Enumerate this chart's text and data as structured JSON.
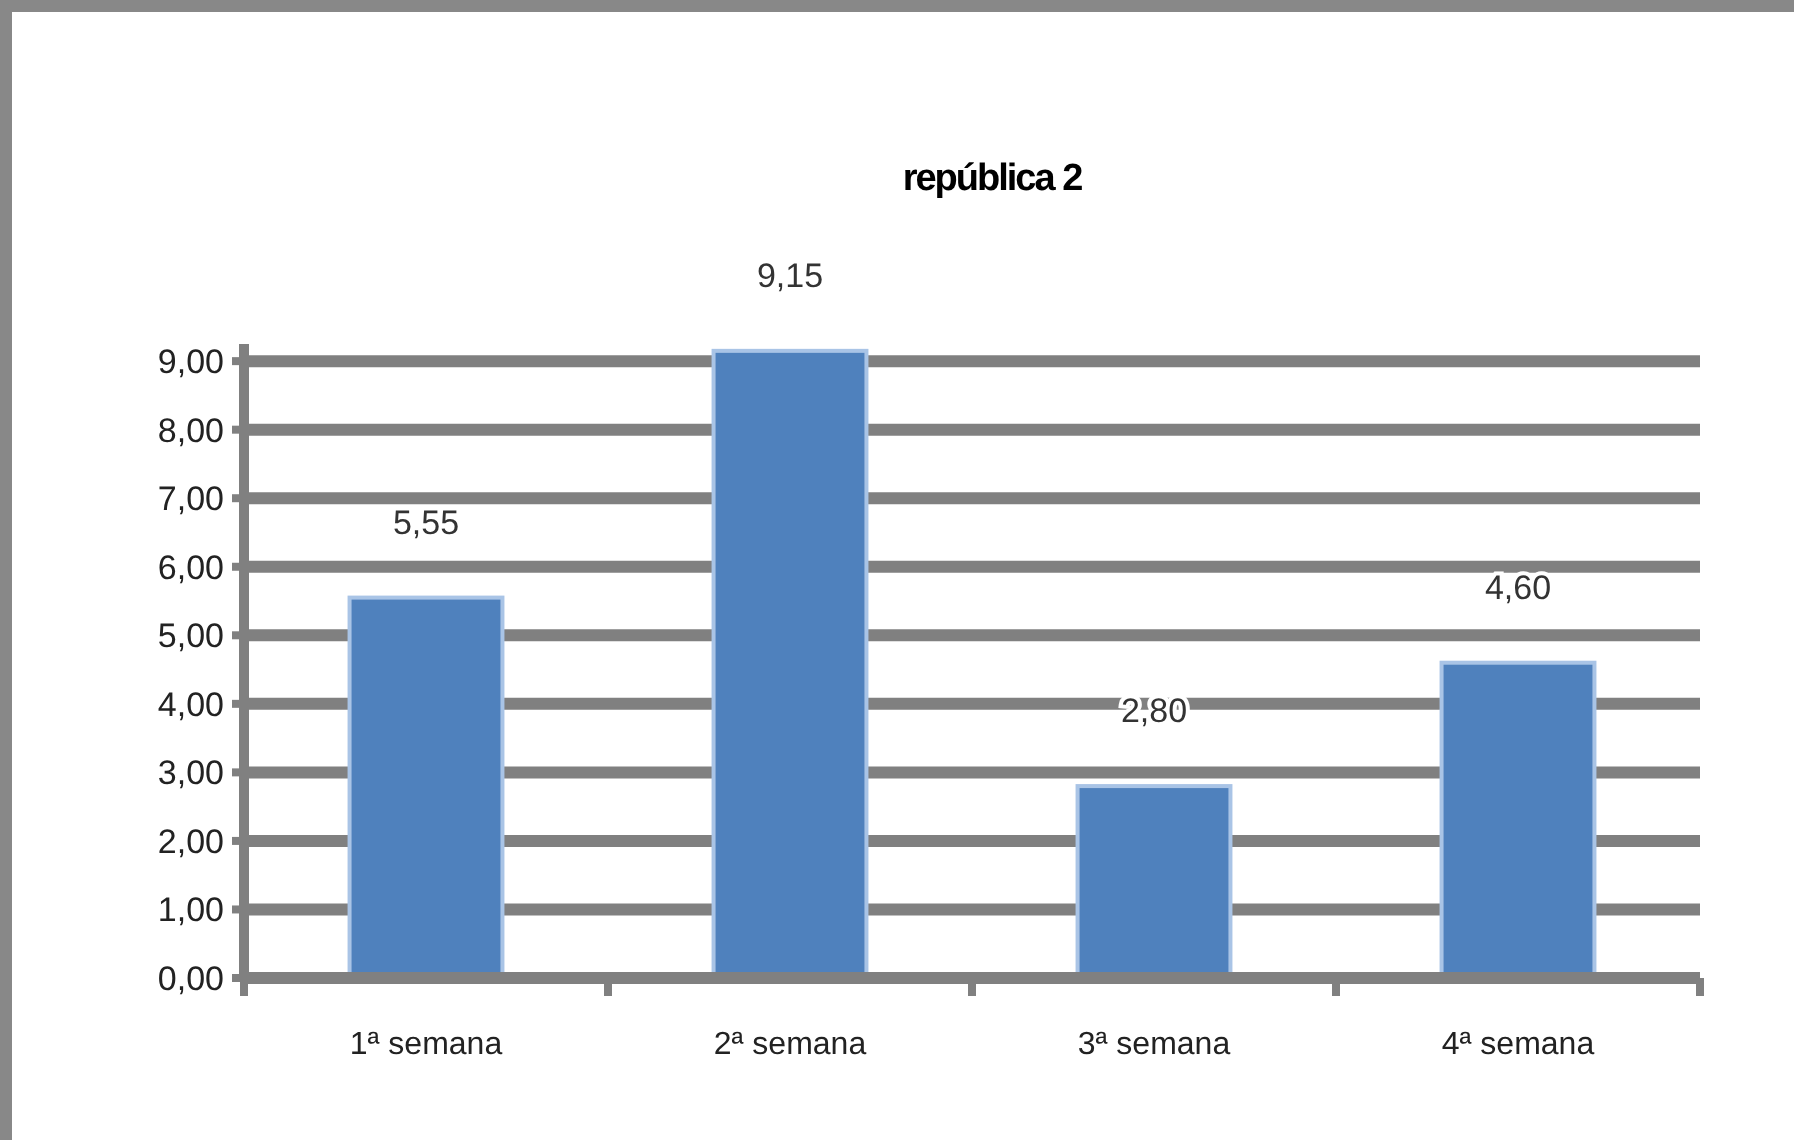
{
  "chart_data": {
    "type": "bar",
    "title": "república 2",
    "categories": [
      "1ª semana",
      "2ª semana",
      "3ª semana",
      "4ª semana"
    ],
    "values": [
      5.55,
      9.15,
      2.8,
      4.6
    ],
    "color": "#4f81bd",
    "value_labels": [
      "5,55",
      "9,15",
      "2,80",
      "4,60"
    ],
    "ylim": [
      0,
      9.25
    ],
    "yticks": [
      {
        "value": 0,
        "label": "0,00"
      },
      {
        "value": 1,
        "label": "1,00"
      },
      {
        "value": 2,
        "label": "2,00"
      },
      {
        "value": 3,
        "label": "3,00"
      },
      {
        "value": 4,
        "label": "4,00"
      },
      {
        "value": 5,
        "label": "5,00"
      },
      {
        "value": 6,
        "label": "6,00"
      },
      {
        "value": 7,
        "label": "7,00"
      },
      {
        "value": 8,
        "label": "8,00"
      },
      {
        "value": 9,
        "label": "9,00"
      }
    ],
    "grid": "y"
  }
}
